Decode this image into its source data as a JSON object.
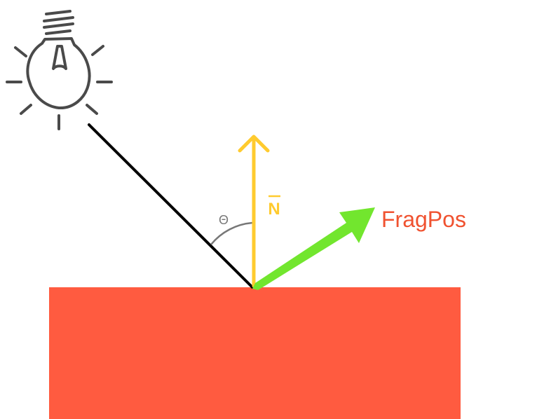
{
  "labels": {
    "normal": "N",
    "angle": "Θ",
    "frag_pos": "FragPos"
  },
  "colors": {
    "surface": "#FF5B40",
    "normal_arrow": "#FFCB2F",
    "frag_arrow": "#72E62E",
    "frag_label": "#F05230",
    "light_ray": "#000000",
    "bulb": "#4A4A4A",
    "angle_arc": "#777777",
    "angle_label": "#777777"
  },
  "icons": {
    "light": "light-bulb-icon"
  }
}
